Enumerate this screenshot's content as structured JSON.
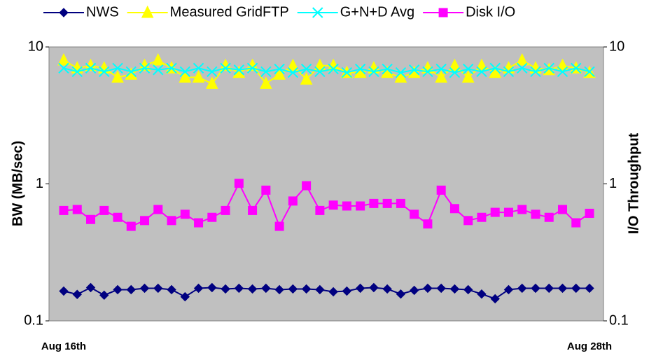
{
  "chart_data": {
    "type": "line",
    "y_axis_label": "BW (MB/sec)",
    "y2_axis_label": "I/O Throughput",
    "log_scale": true,
    "legend": "top",
    "categories": [
      "Aug 16th",
      null,
      null,
      null,
      null,
      null,
      null,
      null,
      null,
      null,
      null,
      null,
      null,
      null,
      null,
      null,
      null,
      null,
      null,
      null,
      null,
      null,
      null,
      null,
      null,
      null,
      null,
      null,
      null,
      null,
      null,
      null,
      null,
      null,
      null,
      null,
      null,
      null,
      null,
      "Aug 28th"
    ],
    "ylim": [
      0.1,
      10
    ],
    "yticks": [
      0.1,
      1,
      10
    ],
    "y2lim": [
      0.1,
      10
    ],
    "y2ticks": [
      0.1,
      1,
      10
    ],
    "series": [
      {
        "name": "NWS",
        "color": "#000080",
        "marker": "diamond",
        "values": [
          0.165,
          0.156,
          0.175,
          0.154,
          0.169,
          0.169,
          0.173,
          0.173,
          0.169,
          0.15,
          0.173,
          0.175,
          0.171,
          0.173,
          0.171,
          0.173,
          0.169,
          0.171,
          0.171,
          0.169,
          0.163,
          0.165,
          0.173,
          0.175,
          0.171,
          0.157,
          0.167,
          0.173,
          0.173,
          0.171,
          0.169,
          0.157,
          0.145,
          0.169,
          0.173,
          0.173,
          0.173,
          0.173,
          0.173,
          0.173
        ]
      },
      {
        "name": "Measured GridFTP",
        "color": "#ffff00",
        "marker": "triangle",
        "values": [
          8.0,
          7.0,
          7.3,
          7.0,
          6.0,
          6.3,
          7.3,
          8.0,
          7.0,
          6.0,
          6.0,
          5.4,
          7.3,
          6.5,
          7.3,
          5.4,
          6.3,
          7.3,
          5.8,
          7.3,
          7.3,
          6.5,
          6.5,
          7.0,
          6.5,
          6.0,
          6.5,
          7.0,
          6.0,
          7.3,
          6.0,
          7.3,
          6.5,
          7.0,
          8.0,
          7.0,
          6.8,
          7.3,
          7.0,
          6.5
        ]
      },
      {
        "name": "G+N+D Avg",
        "color": "#00ffff",
        "marker": "x",
        "values": [
          7.0,
          6.6,
          7.0,
          6.6,
          7.0,
          6.6,
          7.0,
          6.8,
          7.0,
          6.6,
          7.0,
          6.6,
          7.0,
          6.8,
          7.0,
          6.6,
          6.9,
          6.5,
          6.9,
          6.6,
          6.9,
          6.5,
          6.9,
          6.6,
          6.9,
          6.5,
          6.8,
          6.6,
          6.9,
          6.5,
          6.9,
          6.6,
          7.0,
          6.6,
          7.0,
          6.6,
          7.0,
          6.6,
          7.0,
          6.6
        ]
      },
      {
        "name": "Disk I/O",
        "color": "#ff00ff",
        "marker": "square",
        "axis": "y2",
        "values": [
          0.64,
          0.65,
          0.55,
          0.64,
          0.57,
          0.49,
          0.54,
          0.65,
          0.54,
          0.6,
          0.52,
          0.57,
          0.64,
          1.01,
          0.64,
          0.9,
          0.49,
          0.75,
          0.97,
          0.64,
          0.7,
          0.69,
          0.69,
          0.72,
          0.72,
          0.72,
          0.6,
          0.51,
          0.9,
          0.66,
          0.54,
          0.57,
          0.62,
          0.62,
          0.65,
          0.6,
          0.57,
          0.65,
          0.52,
          0.61
        ]
      }
    ]
  }
}
